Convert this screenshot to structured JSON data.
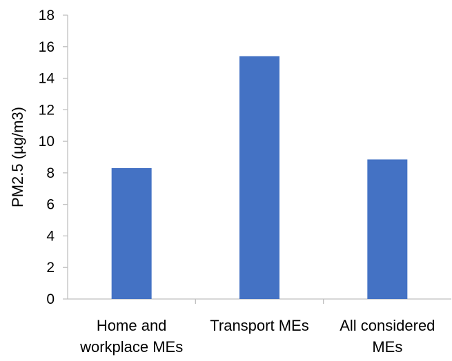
{
  "chart_data": {
    "type": "bar",
    "title": "",
    "xlabel": "",
    "ylabel": "PM2.5 (µg/m3)",
    "categories": [
      [
        "Home and",
        "workplace MEs"
      ],
      [
        "Transport MEs"
      ],
      [
        "All considered",
        "MEs"
      ]
    ],
    "values": [
      8.3,
      15.4,
      8.85
    ],
    "ylim": [
      0,
      18
    ],
    "yticks": [
      0,
      2,
      4,
      6,
      8,
      10,
      12,
      14,
      16,
      18
    ],
    "grid": false,
    "legend": "none",
    "bar_color": "#4472C4",
    "axis_color": "#BFBFBF"
  }
}
